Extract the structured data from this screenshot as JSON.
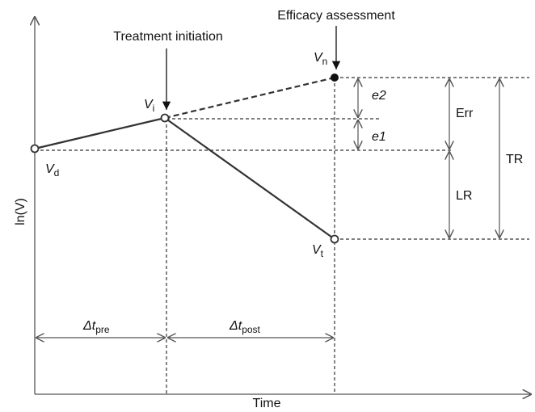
{
  "labels": {
    "efficacy": "Efficacy assessment",
    "treatment": "Treatment initiation",
    "v_n": {
      "symbol": "V",
      "subscript": "n"
    },
    "v_i": {
      "symbol": "V",
      "subscript": "i"
    },
    "v_d": {
      "symbol": "V",
      "subscript": "d"
    },
    "v_t": {
      "symbol": "V",
      "subscript": "t"
    },
    "e2": "e2",
    "e1": "e1",
    "err": "Err",
    "lr": "LR",
    "tr": "TR",
    "y_axis": "ln(V)",
    "x_axis": "Time",
    "dt_pre": {
      "symbol": "Δt",
      "subscript": "pre"
    },
    "dt_post": {
      "symbol": "Δt",
      "subscript": "post"
    }
  }
}
